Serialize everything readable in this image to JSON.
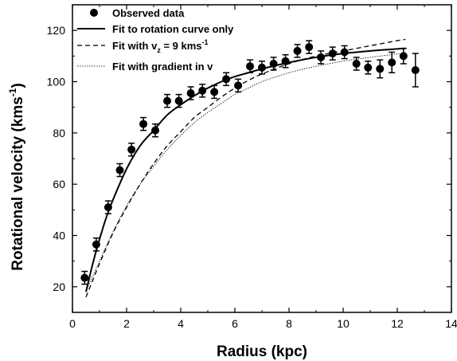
{
  "chart_data": {
    "type": "scatter",
    "xlabel": "Radius (kpc)",
    "ylabel": "Rotational velocity (kms",
    "ylabel_sup": "-1",
    "ylabel_close": ")",
    "xlim": [
      0,
      14
    ],
    "ylim": [
      10,
      130
    ],
    "xticks": [
      0,
      2,
      4,
      6,
      8,
      10,
      12,
      14
    ],
    "yticks": [
      20,
      40,
      60,
      80,
      100,
      120
    ],
    "legend_position": "top-left",
    "legend": [
      {
        "key": "observed",
        "text": "Observed data",
        "sub": "",
        "tail": ""
      },
      {
        "key": "fit_rc",
        "text": "Fit to rotation curve only",
        "sub": "",
        "tail": ""
      },
      {
        "key": "fit_vz",
        "text": "Fit with v",
        "sub": "z",
        "tail": " = 9 kms",
        "sup": "-1"
      },
      {
        "key": "fit_grad",
        "text": "Fit with gradient in v",
        "sub": "",
        "tail": ""
      }
    ],
    "observed": {
      "name": "Observed data",
      "x": [
        0.45,
        0.88,
        1.32,
        1.75,
        2.18,
        2.62,
        3.06,
        3.5,
        3.93,
        4.37,
        4.8,
        5.24,
        5.68,
        6.12,
        6.56,
        7.0,
        7.43,
        7.87,
        8.31,
        8.74,
        9.18,
        9.61,
        10.05,
        10.49,
        10.92,
        11.36,
        11.8,
        12.23,
        12.67
      ],
      "y": [
        23.5,
        36.5,
        51.0,
        65.5,
        73.5,
        83.5,
        81.0,
        92.5,
        92.5,
        95.5,
        96.5,
        96.0,
        101.0,
        98.5,
        106.0,
        105.5,
        107.0,
        108.0,
        112.0,
        113.5,
        109.5,
        111.0,
        111.5,
        107.0,
        105.5,
        105.0,
        107.5,
        110.0,
        104.5
      ],
      "err": [
        2.5,
        2.5,
        2.5,
        2.5,
        2.5,
        2.5,
        2.5,
        2.5,
        2.5,
        2.5,
        2.5,
        2.5,
        2.5,
        2.5,
        2.5,
        2.5,
        2.5,
        2.5,
        2.5,
        2.5,
        2.5,
        2.5,
        2.5,
        2.5,
        2.5,
        3.5,
        4.0,
        3.0,
        6.5
      ]
    },
    "fit_rc": {
      "name": "Fit to rotation curve only",
      "x": [
        0.5,
        0.75,
        1.0,
        1.25,
        1.5,
        2.0,
        2.5,
        3.0,
        3.5,
        4.0,
        4.5,
        5.0,
        5.5,
        6.0,
        6.5,
        7.0,
        8.0,
        9.0,
        10.0,
        11.0,
        12.0,
        12.3
      ],
      "y": [
        18.0,
        29.0,
        38.5,
        47.0,
        54.0,
        66.0,
        75.0,
        81.0,
        87.0,
        91.0,
        94.5,
        97.5,
        100.0,
        102.0,
        103.5,
        105.0,
        107.5,
        109.5,
        111.0,
        112.0,
        112.8,
        113.0
      ]
    },
    "fit_vz": {
      "name": "Fit with vz = 9 kms-1",
      "x": [
        0.5,
        1.0,
        1.5,
        2.0,
        2.5,
        3.0,
        3.5,
        4.0,
        4.5,
        5.0,
        5.5,
        6.0,
        6.5,
        7.0,
        8.0,
        9.0,
        10.0,
        11.0,
        12.0,
        12.3
      ],
      "y": [
        16.0,
        29.0,
        41.0,
        51.0,
        60.0,
        68.0,
        75.0,
        80.5,
        86.0,
        90.0,
        94.0,
        97.5,
        100.5,
        103.0,
        107.0,
        110.0,
        112.0,
        114.0,
        116.0,
        116.5
      ]
    },
    "fit_grad": {
      "name": "Fit with gradient in v",
      "x": [
        0.5,
        1.0,
        1.5,
        2.0,
        2.5,
        3.0,
        3.5,
        4.0,
        4.5,
        5.0,
        5.5,
        6.0,
        6.5,
        7.0,
        8.0,
        9.0,
        10.0,
        11.0,
        12.0,
        12.3
      ],
      "y": [
        18.5,
        30.0,
        41.5,
        51.5,
        60.0,
        67.0,
        73.5,
        79.0,
        84.0,
        88.0,
        91.5,
        95.0,
        97.5,
        100.0,
        103.5,
        106.0,
        108.0,
        109.5,
        110.8,
        111.0
      ]
    }
  }
}
